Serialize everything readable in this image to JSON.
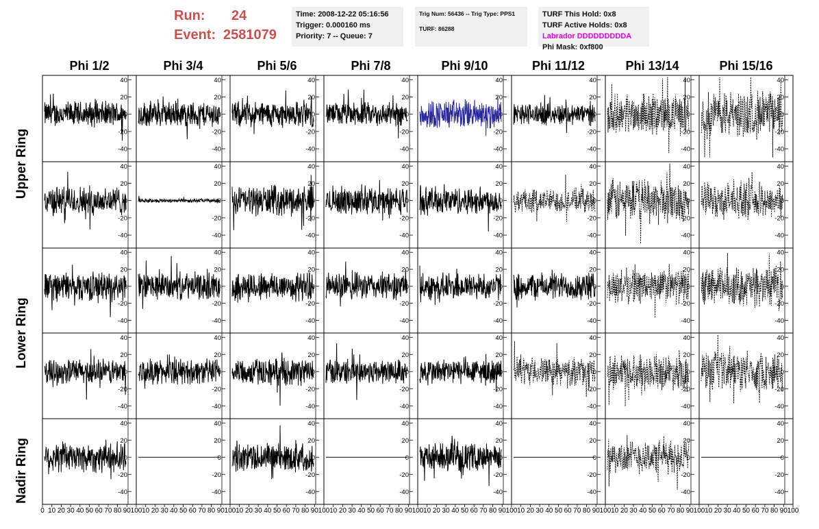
{
  "header": {
    "run_label": "Run:",
    "run_value": "24",
    "event_label": "Event:",
    "event_value": "2581079"
  },
  "info_time": {
    "time": "Time: 2008-12-22 05:16:56",
    "trigger": "Trigger: 0.000160 ms",
    "priority": "Priority: 7 -- Queue: 7"
  },
  "info_trig": {
    "trig": "Trig Num: 56436 -- Trig Type: PPS1",
    "turf": "TURF: 86288"
  },
  "info_turf": {
    "hold": "TURF This Hold: 0x8",
    "active": "TURF Active Holds: 0x8",
    "labrador": "Labrador DDDDDDDDDA",
    "phimask": "Phi Mask: 0xf800",
    "labrador_color": "#e000e0"
  },
  "rings": [
    "Upper Ring",
    "Lower Ring",
    "Nadir Ring"
  ],
  "colors": {
    "trace": "#000000",
    "highlight": "#2a2a9a"
  },
  "chart_data": {
    "type": "line",
    "columns": [
      "Phi 1/2",
      "Phi 3/4",
      "Phi 5/6",
      "Phi 7/8",
      "Phi 9/10",
      "Phi 11/12",
      "Phi 13/14",
      "Phi 15/16"
    ],
    "ylim": [
      -55,
      45
    ],
    "yticks": [
      -40,
      -20,
      0,
      20,
      40
    ],
    "xlim": [
      0,
      100
    ],
    "xticks": [
      0,
      10,
      20,
      30,
      40,
      50,
      60,
      70,
      80,
      90,
      100
    ],
    "panel_rows": [
      [
        {
          "amp": 13,
          "style": "solid"
        },
        {
          "amp": 13,
          "style": "solid"
        },
        {
          "amp": 13,
          "style": "solid"
        },
        {
          "amp": 12,
          "style": "solid"
        },
        {
          "amp": 15,
          "style": "solid",
          "highlight": true
        },
        {
          "amp": 11,
          "style": "solid"
        },
        {
          "amp": 20,
          "style": "dashed"
        },
        {
          "amp": 24,
          "style": "dashed"
        }
      ],
      [
        {
          "amp": 15,
          "style": "solid"
        },
        {
          "amp": 2,
          "style": "solid"
        },
        {
          "amp": 15,
          "style": "solid"
        },
        {
          "amp": 14,
          "style": "solid"
        },
        {
          "amp": 14,
          "style": "solid"
        },
        {
          "amp": 12,
          "style": "dashed"
        },
        {
          "amp": 22,
          "style": "dashed"
        },
        {
          "amp": 18,
          "style": "dashed"
        }
      ],
      [
        {
          "amp": 15,
          "style": "solid"
        },
        {
          "amp": 14,
          "style": "solid"
        },
        {
          "amp": 15,
          "style": "solid"
        },
        {
          "amp": 14,
          "style": "solid"
        },
        {
          "amp": 14,
          "style": "solid"
        },
        {
          "amp": 14,
          "style": "solid"
        },
        {
          "amp": 18,
          "style": "dashed"
        },
        {
          "amp": 20,
          "style": "dashed"
        }
      ],
      [
        {
          "amp": 13,
          "style": "solid"
        },
        {
          "amp": 13,
          "style": "solid"
        },
        {
          "amp": 14,
          "style": "solid"
        },
        {
          "amp": 13,
          "style": "solid"
        },
        {
          "amp": 13,
          "style": "solid"
        },
        {
          "amp": 14,
          "style": "dashed"
        },
        {
          "amp": 18,
          "style": "dashed"
        },
        {
          "amp": 20,
          "style": "dashed"
        }
      ],
      [
        {
          "amp": 16,
          "style": "solid"
        },
        {
          "amp": 0,
          "style": "solid"
        },
        {
          "amp": 15,
          "style": "solid"
        },
        {
          "amp": 0,
          "style": "solid"
        },
        {
          "amp": 14,
          "style": "solid"
        },
        {
          "amp": 0,
          "style": "solid"
        },
        {
          "amp": 17,
          "style": "dashed"
        },
        {
          "amp": 0,
          "style": "solid"
        }
      ]
    ]
  }
}
